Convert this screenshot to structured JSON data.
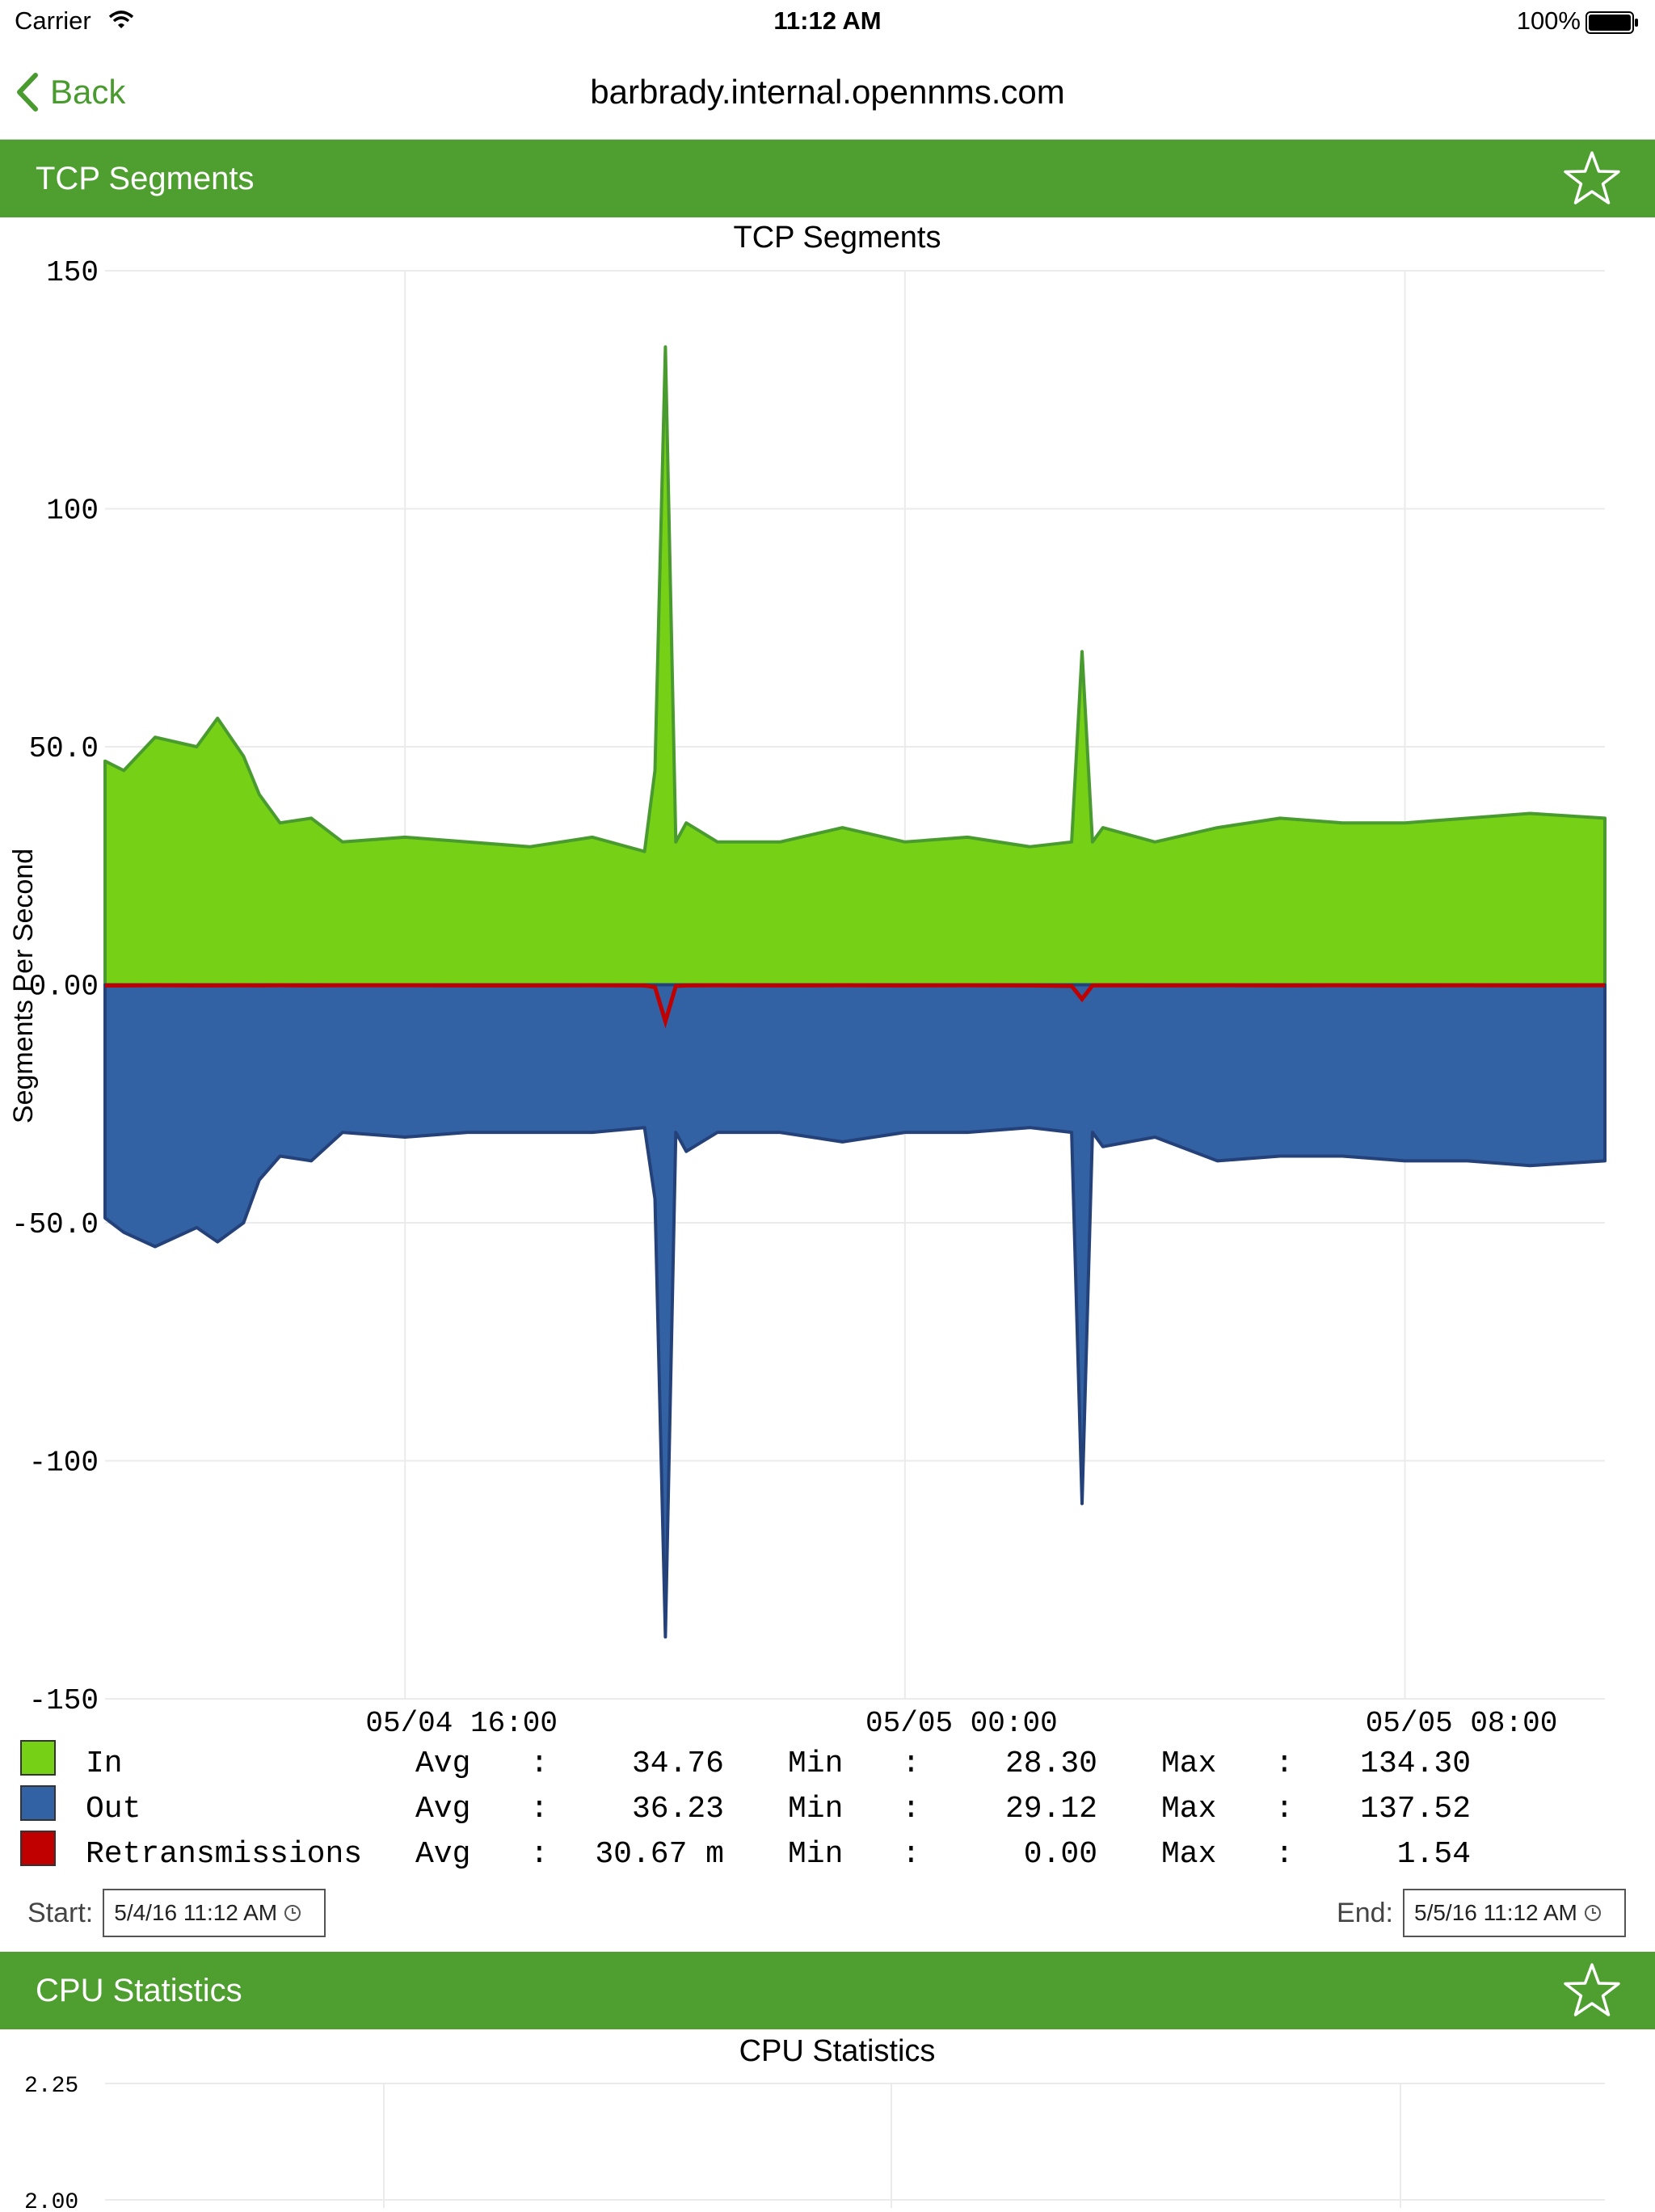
{
  "status_bar": {
    "carrier": "Carrier",
    "time": "11:12 AM",
    "battery": "100%"
  },
  "nav": {
    "back_label": "Back",
    "title": "barbrady.internal.opennms.com"
  },
  "colors": {
    "in": "#76d116",
    "in_line": "#4a9b2f",
    "out": "#3262a4",
    "out_line": "#24417a",
    "retrans": "#c00000",
    "header": "#4e9e30"
  },
  "tcp_section": {
    "header": "TCP Segments",
    "chart_data": {
      "type": "area",
      "title": "TCP Segments",
      "ylabel": "Segments Per Second",
      "ylim": [
        -150,
        150
      ],
      "yticks": [
        "150",
        "100",
        "50.0",
        "0.00",
        "-50.0",
        "-100",
        "-150"
      ],
      "xticks": [
        "05/04 16:00",
        "05/05 00:00",
        "05/05 08:00"
      ],
      "x": [
        "05/04 11:12",
        "05/04 11:30",
        "05/04 12:00",
        "05/04 12:40",
        "05/04 13:00",
        "05/04 13:25",
        "05/04 13:40",
        "05/04 14:00",
        "05/04 14:30",
        "05/04 15:00",
        "05/04 16:00",
        "05/04 17:00",
        "05/04 18:00",
        "05/04 19:00",
        "05/04 19:50",
        "05/04 20:00",
        "05/04 20:10",
        "05/04 20:20",
        "05/04 20:30",
        "05/04 21:00",
        "05/04 22:00",
        "05/04 23:00",
        "05/05 00:00",
        "05/05 01:00",
        "05/05 02:00",
        "05/05 02:40",
        "05/05 02:50",
        "05/05 03:00",
        "05/05 03:10",
        "05/05 04:00",
        "05/05 05:00",
        "05/05 06:00",
        "05/05 07:00",
        "05/05 08:00",
        "05/05 09:00",
        "05/05 10:00",
        "05/05 11:12"
      ],
      "series": [
        {
          "name": "In",
          "values": [
            47,
            45,
            52,
            50,
            56,
            48,
            40,
            34,
            35,
            30,
            31,
            30,
            29,
            31,
            28,
            45,
            134,
            30,
            34,
            30,
            30,
            33,
            30,
            31,
            29,
            30,
            70,
            30,
            33,
            30,
            33,
            35,
            34,
            34,
            35,
            36,
            35
          ]
        },
        {
          "name": "Out",
          "values": [
            -49,
            -52,
            -55,
            -51,
            -54,
            -50,
            -41,
            -36,
            -37,
            -31,
            -32,
            -31,
            -31,
            -31,
            -30,
            -45,
            -137,
            -31,
            -35,
            -31,
            -31,
            -33,
            -31,
            -31,
            -30,
            -31,
            -109,
            -31,
            -34,
            -32,
            -37,
            -36,
            -36,
            -37,
            -37,
            -38,
            -37
          ]
        },
        {
          "name": "Retransmissions",
          "values": [
            0.03,
            0.03,
            0.02,
            0.03,
            0.03,
            0.02,
            0.03,
            0.02,
            0.03,
            0.02,
            0.02,
            0.03,
            0.03,
            0.02,
            0.03,
            0.1,
            1.54,
            0.05,
            0.03,
            0.02,
            0.03,
            0.02,
            0.03,
            0.02,
            0.03,
            0.05,
            0.6,
            0.03,
            0.02,
            0.03,
            0.02,
            0.03,
            0.02,
            0.03,
            0.02,
            0.03,
            0.02
          ]
        }
      ],
      "legend": [
        {
          "name": "In",
          "avg_label": "Avg",
          "avg": "34.76",
          "min_label": "Min",
          "min": "28.30",
          "max_label": "Max",
          "max": "134.30"
        },
        {
          "name": "Out",
          "avg_label": "Avg",
          "avg": "36.23",
          "min_label": "Min",
          "min": "29.12",
          "max_label": "Max",
          "max": "137.52"
        },
        {
          "name": "Retransmissions",
          "avg_label": "Avg",
          "avg": "30.67 m",
          "min_label": "Min",
          "min": "0.00",
          "max_label": "Max",
          "max": "1.54"
        }
      ],
      "separator": ":"
    },
    "start_label": "Start:",
    "start_value": "5/4/16 11:12 AM",
    "end_label": "End:",
    "end_value": "5/5/16 11:12 AM"
  },
  "cpu_section": {
    "header": "CPU Statistics",
    "chart_data": {
      "type": "area",
      "title": "CPU Statistics",
      "yticks": [
        "2.25",
        "2.00"
      ]
    }
  }
}
